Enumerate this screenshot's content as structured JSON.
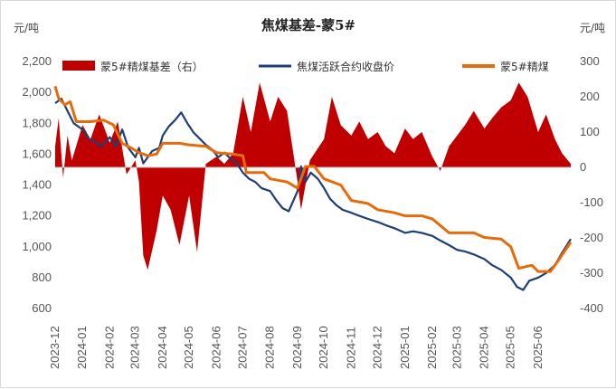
{
  "chart_data": {
    "type": "line",
    "title": "焦煤基差-蒙5#",
    "y_left_unit": "元/吨",
    "y_right_unit": "元/吨",
    "y_left_range": [
      600,
      2200
    ],
    "y_left_ticks": [
      "600",
      "800",
      "1,000",
      "1,200",
      "1,400",
      "1,600",
      "1,800",
      "2,000",
      "2,200"
    ],
    "y_right_range": [
      -400,
      300
    ],
    "y_right_ticks": [
      "-400",
      "-300",
      "-200",
      "-100",
      "0",
      "100",
      "200",
      "300"
    ],
    "x_range": [
      "2023-12-01",
      "2025-07-08"
    ],
    "x_tick_labels": [
      "2023-12",
      "2024-01",
      "2024-02",
      "2024-03",
      "2024-04",
      "2024-05",
      "2024-06",
      "2024-07",
      "2024-08",
      "2024-09",
      "2024-10",
      "2024-11",
      "2024-12",
      "2025-01",
      "2025-02",
      "2025-03",
      "2025-04",
      "2025-05",
      "2025-06"
    ],
    "legend": [
      {
        "name": "蒙5#精煤基差（右）",
        "kind": "area",
        "color": "#c00000"
      },
      {
        "name": "焦煤活跃合约收盘价",
        "kind": "line",
        "color": "#1f3e74"
      },
      {
        "name": "蒙5#精煤",
        "kind": "line",
        "color": "#e46c0a"
      }
    ],
    "series": [
      {
        "name": "焦煤活跃合约收盘价",
        "axis": "left",
        "color": "#1f3e74",
        "points": [
          [
            "2023-12-01",
            1930
          ],
          [
            "2023-12-08",
            1960
          ],
          [
            "2023-12-15",
            1880
          ],
          [
            "2023-12-22",
            1800
          ],
          [
            "2024-01-01",
            1760
          ],
          [
            "2024-01-08",
            1700
          ],
          [
            "2024-01-15",
            1680
          ],
          [
            "2024-01-22",
            1650
          ],
          [
            "2024-02-01",
            1710
          ],
          [
            "2024-02-08",
            1650
          ],
          [
            "2024-02-15",
            1760
          ],
          [
            "2024-02-22",
            1640
          ],
          [
            "2024-03-01",
            1580
          ],
          [
            "2024-03-05",
            1640
          ],
          [
            "2024-03-10",
            1540
          ],
          [
            "2024-03-20",
            1620
          ],
          [
            "2024-03-28",
            1640
          ],
          [
            "2024-04-01",
            1720
          ],
          [
            "2024-04-08",
            1780
          ],
          [
            "2024-04-15",
            1820
          ],
          [
            "2024-04-22",
            1870
          ],
          [
            "2024-04-29",
            1800
          ],
          [
            "2024-05-06",
            1740
          ],
          [
            "2024-05-13",
            1700
          ],
          [
            "2024-05-20",
            1660
          ],
          [
            "2024-05-27",
            1630
          ],
          [
            "2024-06-03",
            1580
          ],
          [
            "2024-06-10",
            1610
          ],
          [
            "2024-06-17",
            1570
          ],
          [
            "2024-06-24",
            1540
          ],
          [
            "2024-07-01",
            1480
          ],
          [
            "2024-07-08",
            1440
          ],
          [
            "2024-07-15",
            1420
          ],
          [
            "2024-07-22",
            1380
          ],
          [
            "2024-08-01",
            1360
          ],
          [
            "2024-08-08",
            1300
          ],
          [
            "2024-08-15",
            1250
          ],
          [
            "2024-08-22",
            1230
          ],
          [
            "2024-09-01",
            1360
          ],
          [
            "2024-09-05",
            1520
          ],
          [
            "2024-09-10",
            1420
          ],
          [
            "2024-09-16",
            1480
          ],
          [
            "2024-09-24",
            1440
          ],
          [
            "2024-10-01",
            1380
          ],
          [
            "2024-10-08",
            1310
          ],
          [
            "2024-10-15",
            1270
          ],
          [
            "2024-10-22",
            1240
          ],
          [
            "2024-11-01",
            1220
          ],
          [
            "2024-11-10",
            1200
          ],
          [
            "2024-11-20",
            1180
          ],
          [
            "2024-12-01",
            1160
          ],
          [
            "2024-12-10",
            1140
          ],
          [
            "2024-12-20",
            1120
          ],
          [
            "2025-01-01",
            1090
          ],
          [
            "2025-01-10",
            1100
          ],
          [
            "2025-01-20",
            1090
          ],
          [
            "2025-02-01",
            1070
          ],
          [
            "2025-02-10",
            1040
          ],
          [
            "2025-02-20",
            1010
          ],
          [
            "2025-03-01",
            980
          ],
          [
            "2025-03-10",
            970
          ],
          [
            "2025-03-20",
            950
          ],
          [
            "2025-04-01",
            920
          ],
          [
            "2025-04-10",
            880
          ],
          [
            "2025-04-20",
            850
          ],
          [
            "2025-05-01",
            800
          ],
          [
            "2025-05-08",
            740
          ],
          [
            "2025-05-15",
            720
          ],
          [
            "2025-05-22",
            780
          ],
          [
            "2025-06-01",
            800
          ],
          [
            "2025-06-10",
            830
          ],
          [
            "2025-06-20",
            880
          ],
          [
            "2025-06-28",
            960
          ],
          [
            "2025-07-08",
            1050
          ]
        ]
      },
      {
        "name": "蒙5#精煤",
        "axis": "left",
        "color": "#e46c0a",
        "points": [
          [
            "2023-12-01",
            2040
          ],
          [
            "2023-12-05",
            1960
          ],
          [
            "2023-12-12",
            1920
          ],
          [
            "2023-12-18",
            1940
          ],
          [
            "2023-12-25",
            1810
          ],
          [
            "2024-01-10",
            1810
          ],
          [
            "2024-01-25",
            1820
          ],
          [
            "2024-02-05",
            1790
          ],
          [
            "2024-02-15",
            1670
          ],
          [
            "2024-02-25",
            1640
          ],
          [
            "2024-03-05",
            1610
          ],
          [
            "2024-03-15",
            1590
          ],
          [
            "2024-03-25",
            1600
          ],
          [
            "2024-04-01",
            1670
          ],
          [
            "2024-04-20",
            1670
          ],
          [
            "2024-05-01",
            1660
          ],
          [
            "2024-05-20",
            1650
          ],
          [
            "2024-06-01",
            1610
          ],
          [
            "2024-06-20",
            1600
          ],
          [
            "2024-07-01",
            1590
          ],
          [
            "2024-07-05",
            1480
          ],
          [
            "2024-07-25",
            1480
          ],
          [
            "2024-08-01",
            1440
          ],
          [
            "2024-08-20",
            1420
          ],
          [
            "2024-09-01",
            1380
          ],
          [
            "2024-09-10",
            1520
          ],
          [
            "2024-09-20",
            1520
          ],
          [
            "2024-10-01",
            1440
          ],
          [
            "2024-10-20",
            1400
          ],
          [
            "2024-11-01",
            1300
          ],
          [
            "2024-11-20",
            1280
          ],
          [
            "2024-12-01",
            1240
          ],
          [
            "2024-12-20",
            1220
          ],
          [
            "2025-01-01",
            1200
          ],
          [
            "2025-01-20",
            1200
          ],
          [
            "2025-02-01",
            1180
          ],
          [
            "2025-02-20",
            1090
          ],
          [
            "2025-03-01",
            1090
          ],
          [
            "2025-03-20",
            1090
          ],
          [
            "2025-04-01",
            1060
          ],
          [
            "2025-04-20",
            1050
          ],
          [
            "2025-05-01",
            1000
          ],
          [
            "2025-05-10",
            860
          ],
          [
            "2025-05-25",
            880
          ],
          [
            "2025-06-01",
            840
          ],
          [
            "2025-06-15",
            840
          ],
          [
            "2025-06-25",
            920
          ],
          [
            "2025-07-08",
            1030
          ]
        ]
      },
      {
        "name": "蒙5#精煤基差（右）",
        "axis": "right",
        "color": "#c00000",
        "type": "area",
        "points": [
          [
            "2023-12-01",
            60
          ],
          [
            "2023-12-05",
            140
          ],
          [
            "2023-12-10",
            -30
          ],
          [
            "2023-12-15",
            90
          ],
          [
            "2023-12-20",
            20
          ],
          [
            "2024-01-01",
            120
          ],
          [
            "2024-01-10",
            80
          ],
          [
            "2024-01-20",
            150
          ],
          [
            "2024-02-01",
            70
          ],
          [
            "2024-02-10",
            130
          ],
          [
            "2024-02-20",
            -20
          ],
          [
            "2024-03-01",
            20
          ],
          [
            "2024-03-05",
            -40
          ],
          [
            "2024-03-10",
            -250
          ],
          [
            "2024-03-15",
            -290
          ],
          [
            "2024-03-25",
            -180
          ],
          [
            "2024-04-01",
            -80
          ],
          [
            "2024-04-10",
            -120
          ],
          [
            "2024-04-20",
            -220
          ],
          [
            "2024-05-01",
            -80
          ],
          [
            "2024-05-10",
            -240
          ],
          [
            "2024-05-20",
            10
          ],
          [
            "2024-06-01",
            30
          ],
          [
            "2024-06-10",
            10
          ],
          [
            "2024-06-20",
            40
          ],
          [
            "2024-07-01",
            200
          ],
          [
            "2024-07-10",
            100
          ],
          [
            "2024-07-20",
            240
          ],
          [
            "2024-08-01",
            130
          ],
          [
            "2024-08-10",
            200
          ],
          [
            "2024-08-20",
            160
          ],
          [
            "2024-09-01",
            -40
          ],
          [
            "2024-09-05",
            -120
          ],
          [
            "2024-09-15",
            20
          ],
          [
            "2024-10-01",
            80
          ],
          [
            "2024-10-10",
            200
          ],
          [
            "2024-10-20",
            120
          ],
          [
            "2024-11-01",
            90
          ],
          [
            "2024-11-10",
            130
          ],
          [
            "2024-11-20",
            80
          ],
          [
            "2024-12-01",
            100
          ],
          [
            "2024-12-10",
            60
          ],
          [
            "2024-12-20",
            40
          ],
          [
            "2025-01-01",
            110
          ],
          [
            "2025-01-10",
            80
          ],
          [
            "2025-01-20",
            100
          ],
          [
            "2025-02-01",
            30
          ],
          [
            "2025-02-10",
            -10
          ],
          [
            "2025-02-20",
            60
          ],
          [
            "2025-03-01",
            90
          ],
          [
            "2025-03-10",
            120
          ],
          [
            "2025-03-20",
            160
          ],
          [
            "2025-04-01",
            110
          ],
          [
            "2025-04-10",
            140
          ],
          [
            "2025-04-20",
            170
          ],
          [
            "2025-05-01",
            190
          ],
          [
            "2025-05-10",
            240
          ],
          [
            "2025-05-20",
            200
          ],
          [
            "2025-06-01",
            100
          ],
          [
            "2025-06-10",
            150
          ],
          [
            "2025-06-20",
            80
          ],
          [
            "2025-06-28",
            40
          ],
          [
            "2025-07-08",
            10
          ]
        ]
      }
    ],
    "grid": false,
    "legend_position": "top"
  }
}
